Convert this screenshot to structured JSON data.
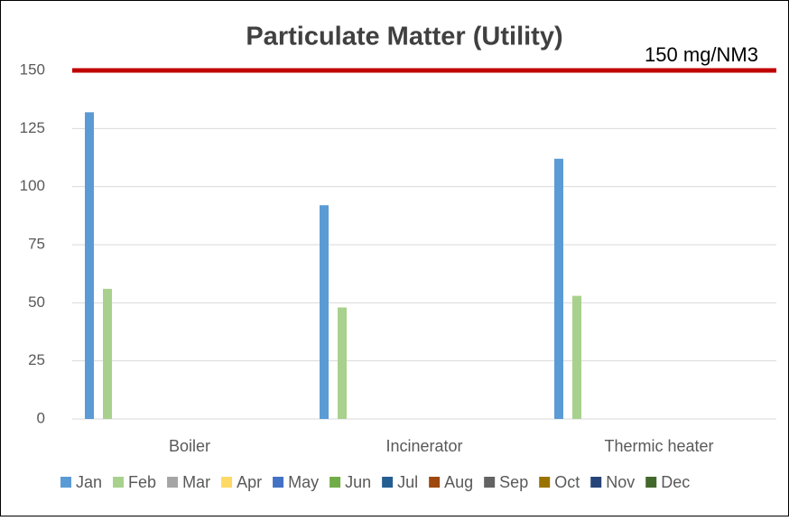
{
  "chart_data": {
    "type": "bar",
    "title": "Particulate Matter (Utility)",
    "categories": [
      "Boiler",
      "Incinerator",
      "Thermic heater"
    ],
    "series": [
      {
        "name": "Jan",
        "color": "#5b9bd5",
        "values": [
          132,
          92,
          112
        ]
      },
      {
        "name": "Feb",
        "color": "#a9d18e",
        "values": [
          56,
          48,
          53
        ]
      },
      {
        "name": "Mar",
        "color": "#a5a5a5",
        "values": [
          null,
          null,
          null
        ]
      },
      {
        "name": "Apr",
        "color": "#ffd966",
        "values": [
          null,
          null,
          null
        ]
      },
      {
        "name": "May",
        "color": "#4472c4",
        "values": [
          null,
          null,
          null
        ]
      },
      {
        "name": "Jun",
        "color": "#70ad47",
        "values": [
          null,
          null,
          null
        ]
      },
      {
        "name": "Jul",
        "color": "#255e91",
        "values": [
          null,
          null,
          null
        ]
      },
      {
        "name": "Aug",
        "color": "#9e480e",
        "values": [
          null,
          null,
          null
        ]
      },
      {
        "name": "Sep",
        "color": "#636363",
        "values": [
          null,
          null,
          null
        ]
      },
      {
        "name": "Oct",
        "color": "#997300",
        "values": [
          null,
          null,
          null
        ]
      },
      {
        "name": "Nov",
        "color": "#264478",
        "values": [
          null,
          null,
          null
        ]
      },
      {
        "name": "Dec",
        "color": "#43682b",
        "values": [
          null,
          null,
          null
        ]
      }
    ],
    "ylim": [
      0,
      150
    ],
    "yticks": [
      0,
      25,
      50,
      75,
      100,
      125,
      150
    ],
    "grid": true,
    "legend": "bottom",
    "reference_line": {
      "value": 150,
      "label": "150 mg/NM3",
      "color": "#c00000"
    }
  }
}
